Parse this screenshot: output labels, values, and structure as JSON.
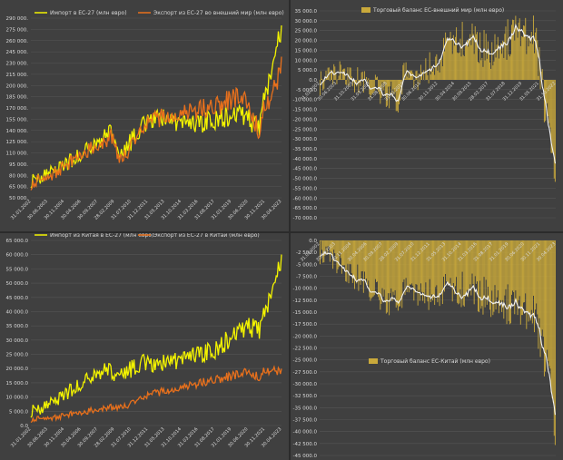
{
  "colors": {
    "background": "#404040",
    "grid": "#555555",
    "axis_text": "#d9d9d9",
    "yellow": "#f2f200",
    "orange": "#e8701c",
    "bar": "#c9a93b",
    "white_line": "#f2f2f2"
  },
  "chart_data": [
    {
      "type": "line",
      "legend": [
        "Импорт в ЕС-27 (млн евро)",
        "Экспорт из ЕС-27 во внешний мир (млн евро)"
      ],
      "legend_position": "top",
      "ylim": [
        50000,
        290000
      ],
      "yticks": [
        "50 000.",
        "65 000.",
        "80 000.",
        "95 000.",
        "110 000.",
        "125 000.",
        "140 000.",
        "155 000.",
        "170 000.",
        "185 000.",
        "200 000.",
        "215 000.",
        "230 000.",
        "245 000.",
        "260 000.",
        "275 000.",
        "290 000."
      ],
      "xticks": [
        "31.01.2002",
        "30.06.2003",
        "30.11.2004",
        "30.04.2006",
        "30.09.2007",
        "28.02.2009",
        "31.07.2010",
        "31.12.2011",
        "31.05.2013",
        "31.10.2014",
        "31.03.2016",
        "31.08.2017",
        "31.01.2019",
        "30.06.2020",
        "30.11.2021",
        "30.04.2023"
      ],
      "series": [
        {
          "name": "Импорт в ЕС-27 (млн евро)",
          "color": "yellow",
          "anchors": [
            [
              0,
              72000
            ],
            [
              12,
              80000
            ],
            [
              24,
              88000
            ],
            [
              36,
              98000
            ],
            [
              48,
              110000
            ],
            [
              60,
              122000
            ],
            [
              72,
              135000
            ],
            [
              78,
              140000
            ],
            [
              84,
              100000
            ],
            [
              90,
              115000
            ],
            [
              100,
              135000
            ],
            [
              110,
              150000
            ],
            [
              120,
              158000
            ],
            [
              130,
              152000
            ],
            [
              140,
              150000
            ],
            [
              150,
              148000
            ],
            [
              160,
              150000
            ],
            [
              170,
              155000
            ],
            [
              180,
              158000
            ],
            [
              190,
              160000
            ],
            [
              200,
              165000
            ],
            [
              210,
              150000
            ],
            [
              216,
              140000
            ],
            [
              222,
              180000
            ],
            [
              228,
              210000
            ],
            [
              234,
              255000
            ],
            [
              238,
              280000
            ]
          ]
        },
        {
          "name": "Экспорт из ЕС-27 во внешний мир (млн евро)",
          "color": "orange",
          "anchors": [
            [
              0,
              68000
            ],
            [
              12,
              75000
            ],
            [
              24,
              85000
            ],
            [
              36,
              95000
            ],
            [
              48,
              108000
            ],
            [
              60,
              118000
            ],
            [
              72,
              128000
            ],
            [
              78,
              132000
            ],
            [
              84,
              95000
            ],
            [
              90,
              110000
            ],
            [
              100,
              130000
            ],
            [
              110,
              148000
            ],
            [
              120,
              155000
            ],
            [
              130,
              160000
            ],
            [
              140,
              162000
            ],
            [
              150,
              165000
            ],
            [
              160,
              168000
            ],
            [
              170,
              170000
            ],
            [
              180,
              175000
            ],
            [
              190,
              182000
            ],
            [
              200,
              185000
            ],
            [
              210,
              160000
            ],
            [
              216,
              140000
            ],
            [
              222,
              170000
            ],
            [
              228,
              190000
            ],
            [
              234,
              210000
            ],
            [
              238,
              230000
            ]
          ]
        }
      ]
    },
    {
      "type": "bar",
      "legend": [
        "Торговый баланс ЕС-внешний мир (млн евро)"
      ],
      "legend_position": "top",
      "ylim": [
        -70000,
        35000
      ],
      "yticks": [
        "35 000.0",
        "30 000.0",
        "25 000.0",
        "20 000.0",
        "15 000.0",
        "10 000.0",
        "5 000.0",
        "0.0",
        "-5 000.0",
        "-10 000.0",
        "-15 000.0",
        "-20 000.0",
        "-25 000.0",
        "-30 000.0",
        "-35 000.0",
        "-40 000.0",
        "-45 000.0",
        "-50 000.0",
        "-55 000.0",
        "-60 000.0",
        "-65 000.0",
        "-70 000.0"
      ],
      "xticks": [
        "31.01.2002",
        "30.06.2003",
        "31.10.2005",
        "31.03.2007",
        "31.08.2008",
        "31.01.2010",
        "30.06.2011",
        "30.11.2012",
        "30.04.2014",
        "30.09.2015",
        "28.02.2017",
        "31.07.2018",
        "31.12.2019",
        "31.05.2021",
        "31.10.2022"
      ],
      "series": [
        {
          "name": "Торговый баланс ЕС-внешний мир (млн евро)",
          "color": "bar",
          "anchors": [
            [
              0,
              -2000
            ],
            [
              12,
              3000
            ],
            [
              24,
              5000
            ],
            [
              36,
              0
            ],
            [
              48,
              -2000
            ],
            [
              60,
              -5000
            ],
            [
              72,
              -8000
            ],
            [
              78,
              -12000
            ],
            [
              84,
              2000
            ],
            [
              96,
              -3000
            ],
            [
              108,
              5000
            ],
            [
              120,
              12000
            ],
            [
              130,
              20000
            ],
            [
              140,
              22000
            ],
            [
              150,
              20000
            ],
            [
              160,
              18000
            ],
            [
              170,
              15000
            ],
            [
              180,
              18000
            ],
            [
              190,
              20000
            ],
            [
              200,
              22000
            ],
            [
              210,
              20000
            ],
            [
              216,
              22000
            ],
            [
              222,
              10000
            ],
            [
              228,
              -15000
            ],
            [
              234,
              -40000
            ],
            [
              238,
              -45000
            ]
          ]
        }
      ]
    },
    {
      "type": "line",
      "legend": [
        "Импорт из Китая в ЕС-27 (млн евро)",
        "Экспорт из ЕС-27 в Китай (млн евро)"
      ],
      "legend_position": "top",
      "ylim": [
        0,
        65000
      ],
      "yticks": [
        "0.0",
        "5 000.0",
        "10 000.0",
        "15 000.0",
        "20 000.0",
        "25 000.0",
        "30 000.0",
        "35 000.0",
        "40 000.0",
        "45 000.0",
        "50 000.0",
        "55 000.0",
        "60 000.0",
        "65 000.0"
      ],
      "xticks": [
        "31.01.2002",
        "30.06.2003",
        "30.11.2004",
        "30.04.2006",
        "30.09.2007",
        "28.02.2009",
        "31.07.2010",
        "31.12.2011",
        "31.05.2013",
        "31.10.2014",
        "31.03.2016",
        "31.08.2017",
        "31.01.2019",
        "30.06.2020",
        "30.11.2021",
        "30.04.2023"
      ],
      "series": [
        {
          "name": "Импорт из Китая в ЕС-27 (млн евро)",
          "color": "yellow",
          "anchors": [
            [
              0,
              5000
            ],
            [
              12,
              6500
            ],
            [
              24,
              9000
            ],
            [
              36,
              12000
            ],
            [
              48,
              15000
            ],
            [
              60,
              18000
            ],
            [
              72,
              20000
            ],
            [
              84,
              17000
            ],
            [
              96,
              20000
            ],
            [
              108,
              22000
            ],
            [
              120,
              21000
            ],
            [
              132,
              22000
            ],
            [
              144,
              23000
            ],
            [
              156,
              25000
            ],
            [
              168,
              26000
            ],
            [
              180,
              28000
            ],
            [
              192,
              32000
            ],
            [
              204,
              35000
            ],
            [
              210,
              34000
            ],
            [
              216,
              33000
            ],
            [
              222,
              38000
            ],
            [
              228,
              45000
            ],
            [
              234,
              53000
            ],
            [
              238,
              60000
            ]
          ]
        },
        {
          "name": "Экспорт из ЕС-27 в Китай (млн евро)",
          "color": "orange",
          "anchors": [
            [
              0,
              2000
            ],
            [
              12,
              2500
            ],
            [
              24,
              3000
            ],
            [
              36,
              3800
            ],
            [
              48,
              4500
            ],
            [
              60,
              5500
            ],
            [
              72,
              6500
            ],
            [
              84,
              6000
            ],
            [
              96,
              8000
            ],
            [
              108,
              10000
            ],
            [
              120,
              11500
            ],
            [
              132,
              12500
            ],
            [
              144,
              13500
            ],
            [
              156,
              14500
            ],
            [
              168,
              15500
            ],
            [
              180,
              16500
            ],
            [
              192,
              17500
            ],
            [
              204,
              18500
            ],
            [
              210,
              18000
            ],
            [
              216,
              17000
            ],
            [
              222,
              19000
            ],
            [
              228,
              20000
            ],
            [
              234,
              19500
            ],
            [
              238,
              19000
            ]
          ]
        }
      ]
    },
    {
      "type": "bar",
      "legend": [
        "Торговый баланс ЕС-Китай (млн евро)"
      ],
      "legend_position": "bottom-right",
      "ylim": [
        -45000,
        0
      ],
      "yticks": [
        "0.0",
        "-2 500.0",
        "-5 000.0",
        "-7 500.0",
        "-10 000.0",
        "-12 500.0",
        "-15 000.0",
        "-17 500.0",
        "-20 000.0",
        "-22 500.0",
        "-25 000.0",
        "-27 500.0",
        "-30 000.0",
        "-32 500.0",
        "-35 000.0",
        "-37 500.0",
        "-40 000.0",
        "-42 500.0",
        "-45 000.0"
      ],
      "xticks": [
        "31.01.2002",
        "30.06.2003",
        "30.11.2004",
        "30.04.2006",
        "30.09.2007",
        "28.02.2009",
        "31.07.2010",
        "31.12.2011",
        "31.05.2013",
        "31.10.2014",
        "31.03.2016",
        "31.08.2017",
        "31.01.2019",
        "30.06.2020",
        "30.11.2021",
        "30.04.2023"
      ],
      "series": [
        {
          "name": "Торговый баланс ЕС-Китай (млн евро)",
          "color": "bar",
          "anchors": [
            [
              0,
              -2500
            ],
            [
              12,
              -3500
            ],
            [
              24,
              -5500
            ],
            [
              36,
              -7500
            ],
            [
              48,
              -9500
            ],
            [
              60,
              -11500
            ],
            [
              72,
              -13000
            ],
            [
              84,
              -11000
            ],
            [
              96,
              -12000
            ],
            [
              108,
              -11500
            ],
            [
              120,
              -10000
            ],
            [
              132,
              -9500
            ],
            [
              144,
              -10000
            ],
            [
              156,
              -11000
            ],
            [
              168,
              -11500
            ],
            [
              180,
              -12000
            ],
            [
              192,
              -14000
            ],
            [
              204,
              -16000
            ],
            [
              210,
              -15500
            ],
            [
              216,
              -16000
            ],
            [
              222,
              -19000
            ],
            [
              228,
              -25000
            ],
            [
              234,
              -33000
            ],
            [
              238,
              -40000
            ]
          ]
        }
      ]
    }
  ]
}
